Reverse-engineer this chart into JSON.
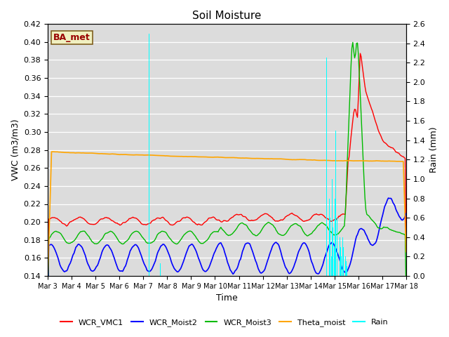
{
  "title": "Soil Moisture",
  "ylabel_left": "VWC (m3/m3)",
  "ylabel_right": "Rain (mm)",
  "xlabel": "Time",
  "ylim_left": [
    0.14,
    0.42
  ],
  "ylim_right": [
    0.0,
    2.6
  ],
  "bg_color": "#dcdcdc",
  "legend_items": [
    "WCR_VMC1",
    "WCR_Moist2",
    "WCR_Moist3",
    "Theta_moist",
    "Rain"
  ],
  "line_colors": [
    "red",
    "blue",
    "#00bb00",
    "orange",
    "cyan"
  ],
  "annotation_text": "BA_met",
  "annotation_fg": "#990000",
  "annotation_bg": "#f0f0c0",
  "annotation_border": "#806020"
}
